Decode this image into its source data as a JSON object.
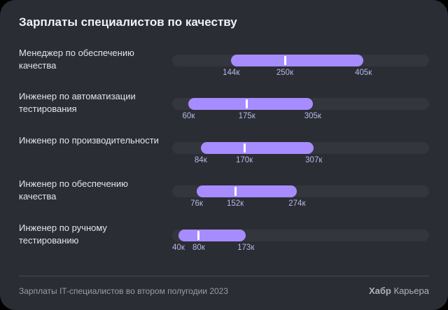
{
  "chart_data": {
    "type": "range-bar",
    "title": "Зарплаты специалистов по качеству",
    "unit_suffix": "к",
    "xlim": [
      0,
      534
    ],
    "series": [
      {
        "label": "Менеджер по обеспечению качества",
        "min": 144,
        "median": 250,
        "max": 405
      },
      {
        "label": "Инженер по автоматизации тестирования",
        "min": 60,
        "median": 175,
        "max": 305
      },
      {
        "label": "Инженер по производительности",
        "min": 84,
        "median": 170,
        "max": 307
      },
      {
        "label": "Инженер по обеспечению качества",
        "min": 76,
        "median": 152,
        "max": 274
      },
      {
        "label": "Инженер по ручному тестированию",
        "min": 40,
        "median": 80,
        "max": 173
      }
    ],
    "colors": {
      "range": "#a68cff",
      "track": "#34363e",
      "median": "#ffffff",
      "value_text": "#b6b9e8"
    }
  },
  "footer": {
    "source": "Зарплаты IT-специалистов во втором полугодии 2023",
    "brand_bold": "Хабр",
    "brand_rest": "Карьера"
  }
}
